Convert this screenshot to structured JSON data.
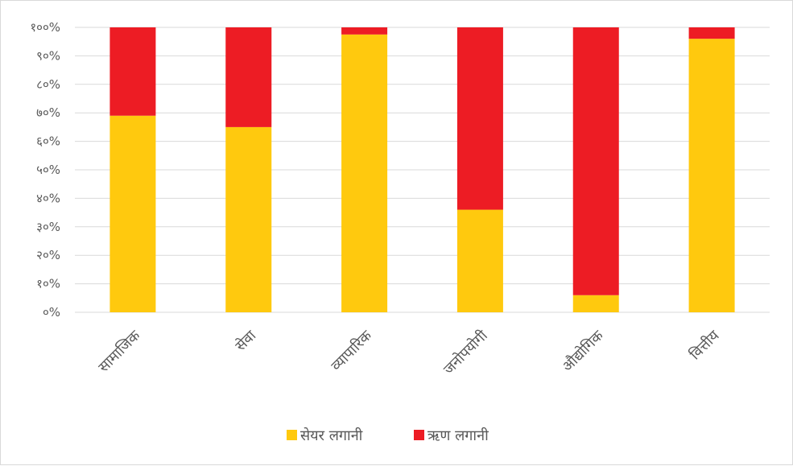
{
  "chart_data": {
    "type": "bar",
    "stacked": true,
    "percent": true,
    "categories": [
      "सामाजिक",
      "सेवा",
      "व्यापारिक",
      "जनोपयोगी",
      "औद्योगिक",
      "वित्तीय"
    ],
    "series": [
      {
        "name": "सेयर लगानी",
        "color": "#FFC90E",
        "values": [
          69,
          65,
          97.5,
          36,
          6,
          96
        ]
      },
      {
        "name": "ऋण लगानी",
        "color": "#ED1C24",
        "values": [
          31,
          35,
          2.5,
          64,
          94,
          4
        ]
      }
    ],
    "ylim": [
      0,
      100
    ],
    "y_ticks": [
      0,
      10,
      20,
      30,
      40,
      50,
      60,
      70,
      80,
      90,
      100
    ],
    "y_tick_labels": [
      "०%",
      "१०%",
      "२०%",
      "३०%",
      "४०%",
      "५०%",
      "६०%",
      "७०%",
      "८०%",
      "९०%",
      "१००%"
    ],
    "grid": true,
    "gridline_color": "#d9d9d9",
    "legend_position": "bottom",
    "title": "",
    "xlabel": "",
    "ylabel": ""
  }
}
